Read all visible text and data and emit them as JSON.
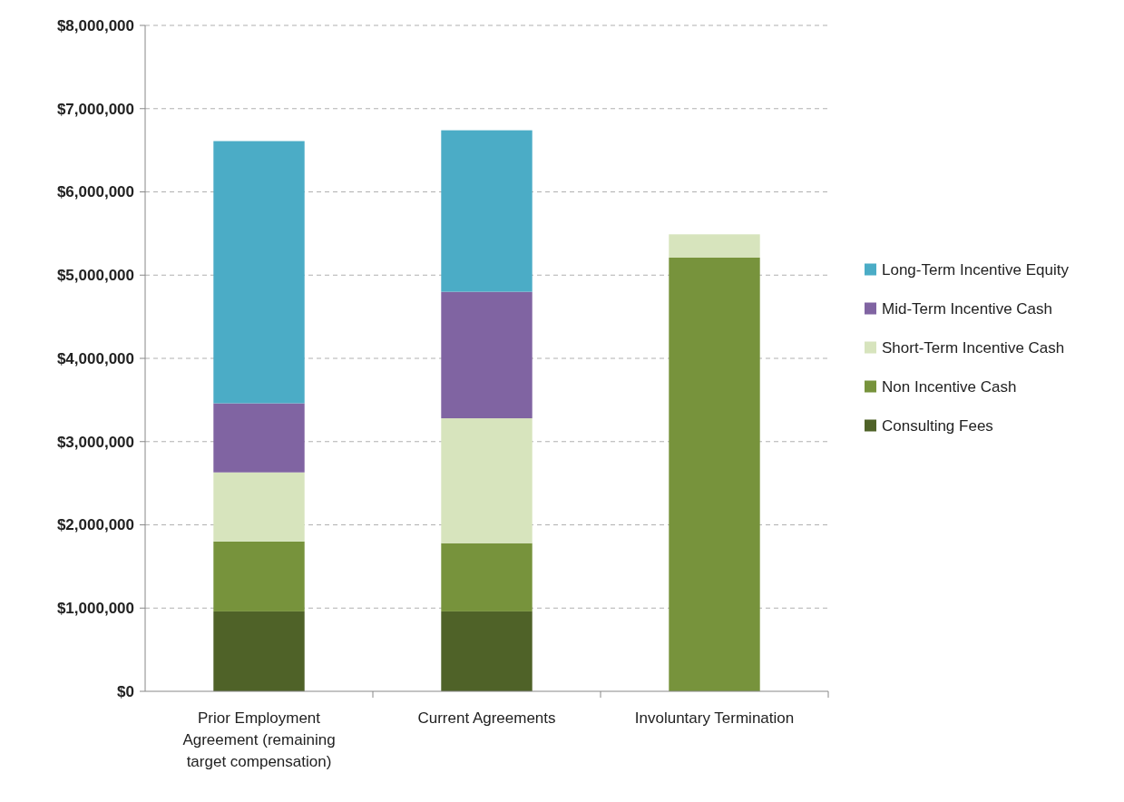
{
  "chart_data": {
    "type": "bar",
    "stacked": true,
    "categories": [
      "Prior Employment Agreement (remaining target compensation)",
      "Current Agreements",
      "Involuntary Termination"
    ],
    "series": [
      {
        "name": "Consulting Fees",
        "color": "#4f6228",
        "values": [
          960000,
          960000,
          0
        ]
      },
      {
        "name": "Non Incentive Cash",
        "color": "#77933c",
        "values": [
          840000,
          820000,
          5210000
        ]
      },
      {
        "name": "Short-Term Incentive Cash",
        "color": "#d7e4bd",
        "values": [
          830000,
          1500000,
          280000
        ]
      },
      {
        "name": "Mid-Term Incentive Cash",
        "color": "#8064a2",
        "values": [
          830000,
          1520000,
          0
        ]
      },
      {
        "name": "Long-Term Incentive Equity",
        "color": "#4bacc6",
        "values": [
          3150000,
          1940000,
          0
        ]
      }
    ],
    "ylim": [
      0,
      8000000
    ],
    "yticks": [
      {
        "value": 0,
        "label": "$0"
      },
      {
        "value": 1000000,
        "label": "$1,000,000"
      },
      {
        "value": 2000000,
        "label": "$2,000,000"
      },
      {
        "value": 3000000,
        "label": "$3,000,000"
      },
      {
        "value": 4000000,
        "label": "$4,000,000"
      },
      {
        "value": 5000000,
        "label": "$5,000,000"
      },
      {
        "value": 6000000,
        "label": "$6,000,000"
      },
      {
        "value": 7000000,
        "label": "$7,000,000"
      },
      {
        "value": 8000000,
        "label": "$8,000,000"
      }
    ],
    "grid": "y",
    "legend": "right"
  }
}
